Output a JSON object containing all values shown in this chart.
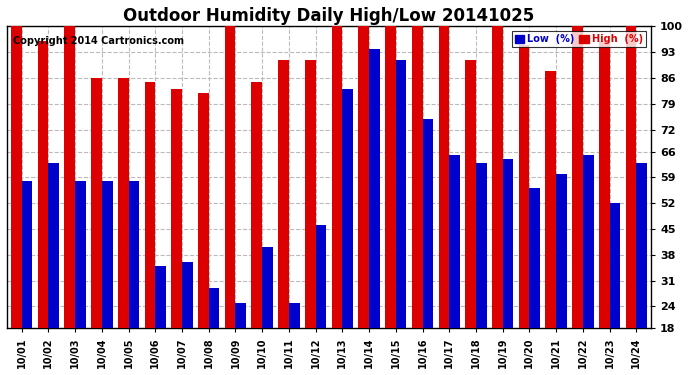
{
  "title": "Outdoor Humidity Daily High/Low 20141025",
  "copyright": "Copyright 2014 Cartronics.com",
  "dates": [
    "10/01",
    "10/02",
    "10/03",
    "10/04",
    "10/05",
    "10/06",
    "10/07",
    "10/08",
    "10/09",
    "10/10",
    "10/11",
    "10/12",
    "10/13",
    "10/14",
    "10/15",
    "10/16",
    "10/17",
    "10/18",
    "10/19",
    "10/20",
    "10/21",
    "10/22",
    "10/23",
    "10/24"
  ],
  "high": [
    100,
    96,
    100,
    86,
    86,
    85,
    83,
    82,
    100,
    85,
    91,
    91,
    100,
    100,
    100,
    100,
    100,
    91,
    100,
    95,
    88,
    100,
    96,
    100
  ],
  "low": [
    58,
    63,
    58,
    58,
    58,
    35,
    36,
    29,
    25,
    40,
    25,
    46,
    83,
    94,
    91,
    75,
    65,
    63,
    64,
    56,
    60,
    65,
    52,
    63
  ],
  "ylim_min": 18,
  "ylim_max": 100,
  "yticks": [
    18,
    24,
    31,
    38,
    45,
    52,
    59,
    66,
    72,
    79,
    86,
    93,
    100
  ],
  "bar_color_low": "#0000cc",
  "bar_color_high": "#dd0000",
  "bg_color": "#ffffff",
  "grid_color": "#bbbbbb",
  "title_fontsize": 12,
  "copyright_fontsize": 7,
  "legend_low_label": "Low  (%)",
  "legend_high_label": "High  (%)"
}
